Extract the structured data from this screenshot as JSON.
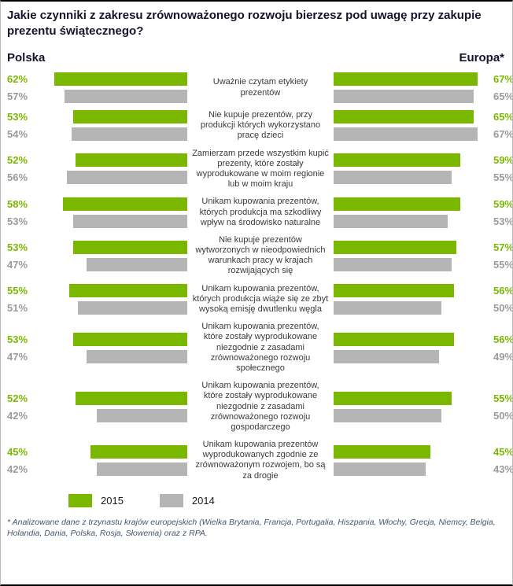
{
  "title": "Jakie czynniki z zakresu zrównoważonego rozwoju bierzesz pod uwagę przy zakupie prezentu świątecznego?",
  "left_header": "Polska",
  "right_header": "Europa*",
  "colors": {
    "green_2015": "#7ab800",
    "gray_2014": "#b5b5b5",
    "green_label": "#7ab800",
    "gray_label": "#9b9b9b"
  },
  "legend": [
    {
      "label": "2015",
      "color": "#7ab800"
    },
    {
      "label": "2014",
      "color": "#b5b5b5"
    }
  ],
  "footnote": "* Analizowane dane z trzynastu krajów europejskich (Wielka Brytania, Francja, Portugalia, Hiszpania, Włochy, Grecja, Niemcy, Belgia, Holandia, Dania, Polska, Rosja, Słowenia) oraz z RPA.",
  "chart_data": {
    "type": "bar",
    "orientation": "horizontal-mirrored",
    "legend_position": "bottom",
    "grid": false,
    "max_value": 67,
    "groups": [
      "Polska",
      "Europa"
    ],
    "series_years": [
      "2015",
      "2014"
    ],
    "rows": [
      {
        "label": "Uważnie czytam etykiety prezentów",
        "polska": {
          "2015": 62,
          "2014": 57
        },
        "europa": {
          "2015": 67,
          "2014": 65
        }
      },
      {
        "label": "Nie kupuje prezentów, przy produkcji których wykorzystano pracę dzieci",
        "polska": {
          "2015": 53,
          "2014": 54
        },
        "europa": {
          "2015": 65,
          "2014": 67
        }
      },
      {
        "label": "Zamierzam przede wszystkim kupić prezenty, które zostały wyprodukowane w moim regionie lub w moim kraju",
        "polska": {
          "2015": 52,
          "2014": 56
        },
        "europa": {
          "2015": 59,
          "2014": 55
        }
      },
      {
        "label": "Unikam kupowania prezentów, których produkcja ma szkodliwy wpływ na środowisko naturalne",
        "polska": {
          "2015": 58,
          "2014": 53
        },
        "europa": {
          "2015": 59,
          "2014": 53
        }
      },
      {
        "label": "Nie kupuje prezentów wytworzonych w nieodpowiednich warunkach pracy w krajach rozwijających się",
        "polska": {
          "2015": 53,
          "2014": 47
        },
        "europa": {
          "2015": 57,
          "2014": 55
        }
      },
      {
        "label": "Unikam kupowania prezentów, których produkcja wiąże się ze zbyt wysoką emisję dwutlenku węgla",
        "polska": {
          "2015": 55,
          "2014": 51
        },
        "europa": {
          "2015": 56,
          "2014": 50
        }
      },
      {
        "label": "Unikam kupowania prezentów, które zostały wyprodukowane niezgodnie z zasadami zrównoważonego rozwoju społecznego",
        "polska": {
          "2015": 53,
          "2014": 47
        },
        "europa": {
          "2015": 56,
          "2014": 49
        }
      },
      {
        "label": "Unikam kupowania prezentów, które zostały wyprodukowane niezgodnie z zasadami zrównoważonego rozwoju gospodarczego",
        "polska": {
          "2015": 52,
          "2014": 42
        },
        "europa": {
          "2015": 55,
          "2014": 50
        }
      },
      {
        "label": "Unikam kupowania prezentów wyprodukowanych zgodnie ze zrównoważonym rozwojem, bo są za drogie",
        "polska": {
          "2015": 45,
          "2014": 42
        },
        "europa": {
          "2015": 45,
          "2014": 43
        }
      }
    ]
  }
}
